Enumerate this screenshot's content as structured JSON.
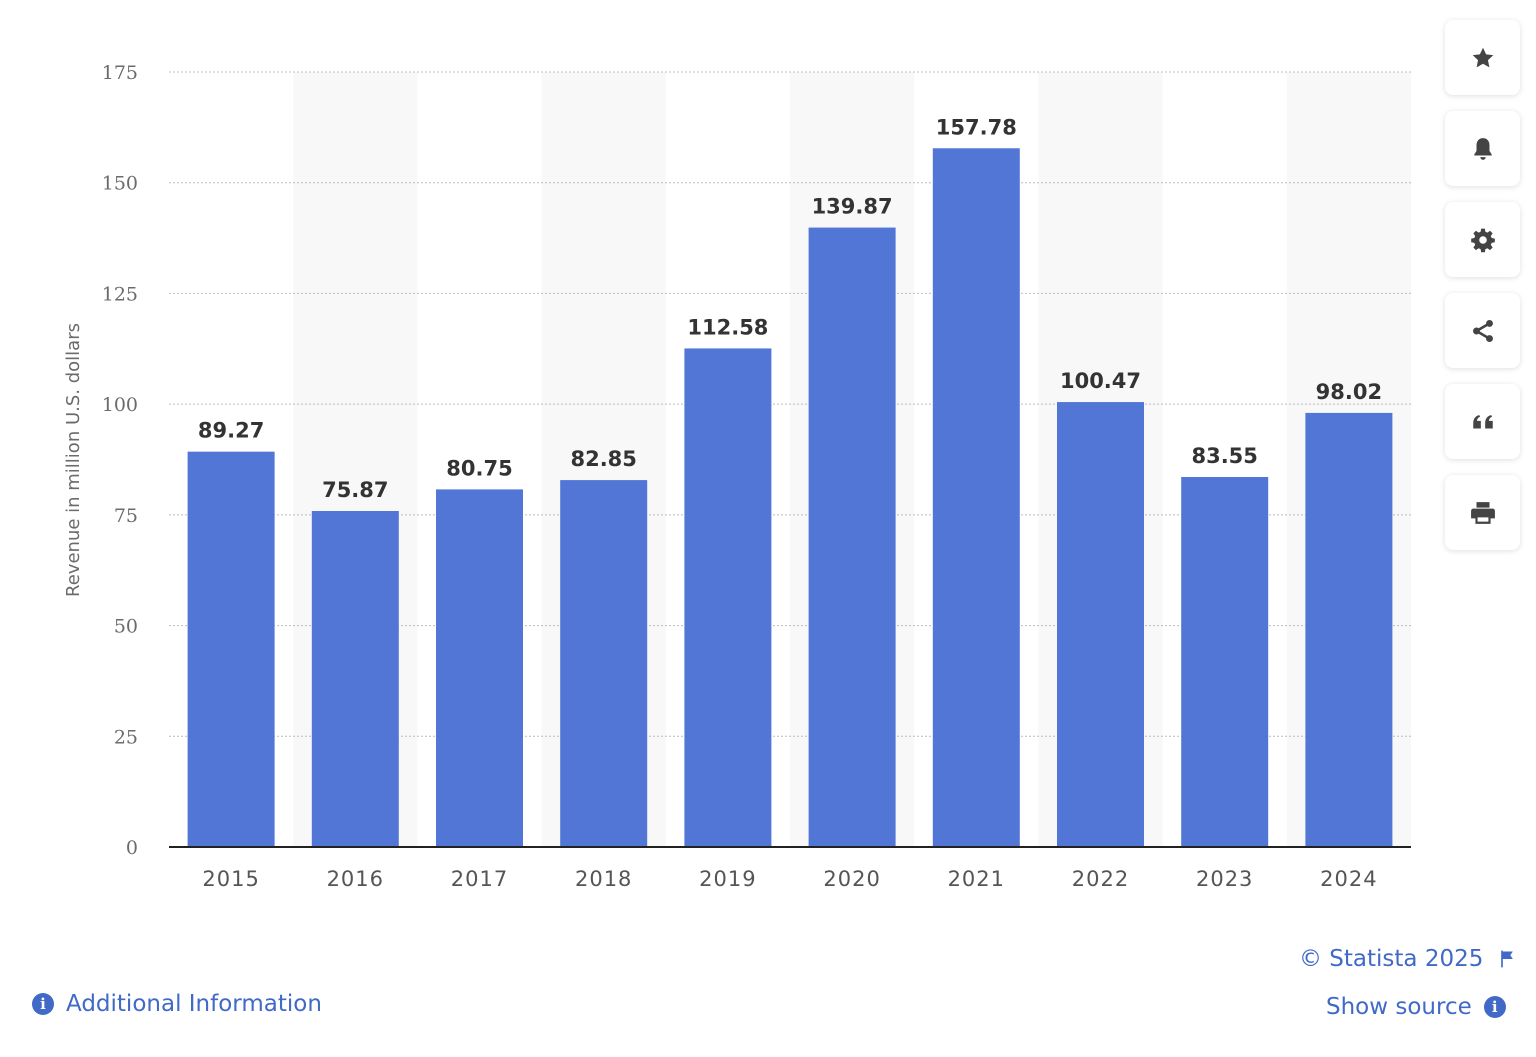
{
  "chart_data": {
    "type": "bar",
    "categories": [
      "2015",
      "2016",
      "2017",
      "2018",
      "2019",
      "2020",
      "2021",
      "2022",
      "2023",
      "2024"
    ],
    "values": [
      89.27,
      75.87,
      80.75,
      82.85,
      112.58,
      139.87,
      157.78,
      100.47,
      83.55,
      98.02
    ],
    "value_labels": [
      "89.27",
      "75.87",
      "80.75",
      "82.85",
      "112.58",
      "139.87",
      "157.78",
      "100.47",
      "83.55",
      "98.02"
    ],
    "ylabel": "Revenue in million U.S. dollars",
    "ylim": [
      0,
      175
    ],
    "yticks": [
      0,
      25,
      50,
      75,
      100,
      125,
      150,
      175
    ],
    "grid": true,
    "bar_color": "#5276d6",
    "band_color": "#f8f8f8"
  },
  "toolbar": {
    "items": [
      {
        "name": "star-icon"
      },
      {
        "name": "bell-icon"
      },
      {
        "name": "gear-icon"
      },
      {
        "name": "share-icon"
      },
      {
        "name": "quote-icon"
      },
      {
        "name": "print-icon"
      }
    ]
  },
  "footer": {
    "copyright": "© Statista 2025",
    "show_source": "Show source",
    "additional_info": "Additional Information"
  },
  "colors": {
    "accent": "#4169c7",
    "icon": "#444444"
  }
}
